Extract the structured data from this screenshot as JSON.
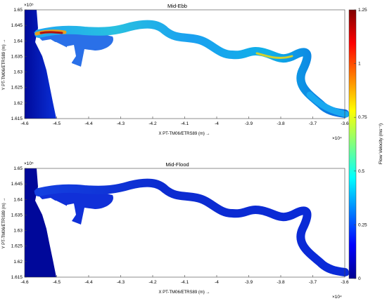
{
  "chart_data": [
    {
      "type": "heatmap",
      "title": "Mid-Ebb",
      "xlabel": "X PT-TM06/ETRS89 (m) →",
      "ylabel": "Y PT-TM06/ETRS89 (m) →",
      "x_exponent_label": "×10⁴",
      "y_exponent_label": "×10⁵",
      "xlim": [
        -4.6,
        -3.6
      ],
      "ylim": [
        1.615,
        1.65
      ],
      "x_ticks": [
        -4.6,
        -4.5,
        -4.4,
        -4.3,
        -4.2,
        -4.1,
        -4,
        -3.9,
        -3.8,
        -3.7,
        -3.6
      ],
      "x_tick_labels": [
        "-4.6",
        "-4.5",
        "-4.4",
        "-4.3",
        "-4.2",
        "-4.1",
        "-4",
        "-3.9",
        "-3.8",
        "-3.7",
        "-3.6"
      ],
      "y_ticks": [
        1.615,
        1.62,
        1.625,
        1.63,
        1.635,
        1.64,
        1.645,
        1.65
      ],
      "y_tick_labels": [
        "1.615",
        "1.62",
        "1.625",
        "1.63",
        "1.635",
        "1.64",
        "1.645",
        "1.65"
      ],
      "grid": false
    },
    {
      "type": "heatmap",
      "title": "Mid-Flood",
      "xlabel": "X PT-TM06/ETRS89 (m) →",
      "ylabel": "Y PT-TM06/ETRS89 (m) →",
      "x_exponent_label": "×10⁴",
      "y_exponent_label": "×10⁵",
      "xlim": [
        -4.6,
        -3.6
      ],
      "ylim": [
        1.615,
        1.65
      ],
      "x_ticks": [
        -4.6,
        -4.5,
        -4.4,
        -4.3,
        -4.2,
        -4.1,
        -4,
        -3.9,
        -3.8,
        -3.7,
        -3.6
      ],
      "x_tick_labels": [
        "-4.6",
        "-4.5",
        "-4.4",
        "-4.3",
        "-4.2",
        "-4.1",
        "-4",
        "-3.9",
        "-3.8",
        "-3.7",
        "-3.6"
      ],
      "y_ticks": [
        1.615,
        1.62,
        1.625,
        1.63,
        1.635,
        1.64,
        1.645,
        1.65
      ],
      "y_tick_labels": [
        "1.615",
        "1.62",
        "1.625",
        "1.63",
        "1.635",
        "1.64",
        "1.645",
        "1.65"
      ],
      "grid": false
    }
  ],
  "colorbar": {
    "label": "Flow Velocity (ms⁻¹)",
    "ticks": [
      0,
      0.25,
      0.5,
      0.75,
      1,
      1.25
    ],
    "tick_labels": [
      "0",
      "0.25",
      "0.5",
      "0.75",
      "1",
      "1.25"
    ],
    "range": [
      0,
      1.25
    ],
    "colormap": "jet",
    "placement": "right"
  },
  "colors": {
    "deep": "#00008f",
    "low": "#0a2fd8",
    "mid": "#19b0f0",
    "high": "#f0c020",
    "peak": "#a00000"
  }
}
